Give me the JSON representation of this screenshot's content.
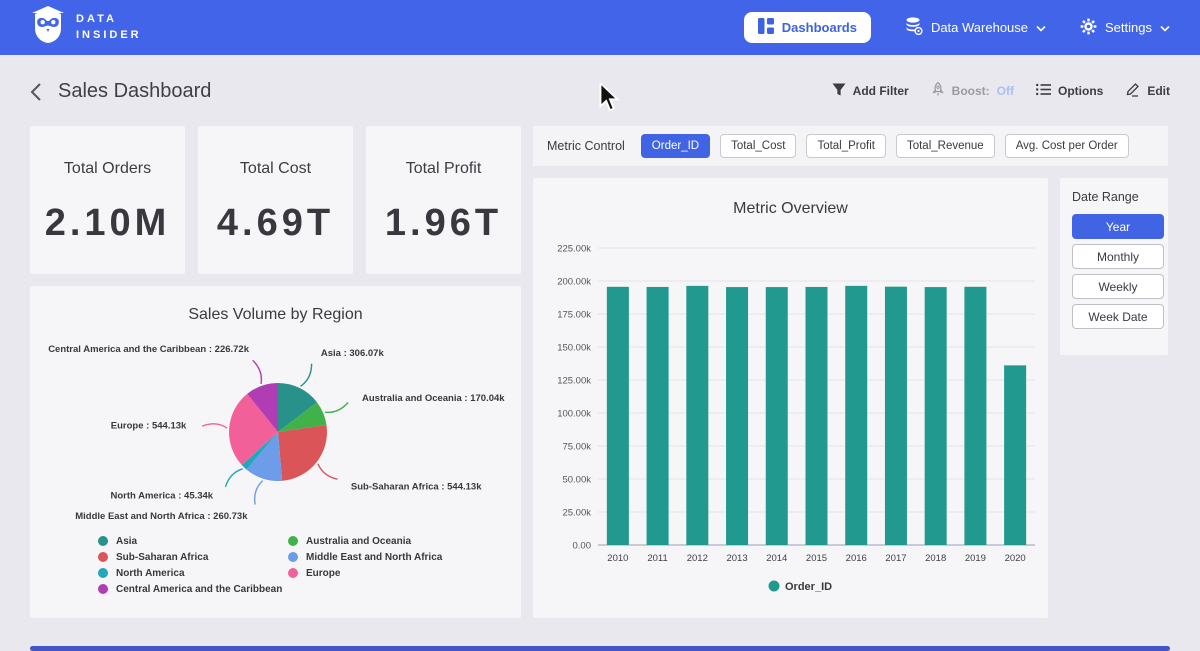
{
  "nav": {
    "brand": {
      "line1": "DATA",
      "line2": "INSIDER"
    },
    "dashboards_label": "Dashboards",
    "data_warehouse_label": "Data Warehouse",
    "settings_label": "Settings"
  },
  "header": {
    "title": "Sales Dashboard",
    "add_filter_label": "Add Filter",
    "boost_label": "Boost:",
    "boost_state": "Off",
    "options_label": "Options",
    "edit_label": "Edit"
  },
  "kpis": [
    {
      "label": "Total Orders",
      "value": "2.10M"
    },
    {
      "label": "Total Cost",
      "value": "4.69T"
    },
    {
      "label": "Total Profit",
      "value": "1.96T"
    }
  ],
  "metric_control": {
    "label": "Metric Control",
    "options": [
      {
        "label": "Order_ID",
        "selected": true
      },
      {
        "label": "Total_Cost",
        "selected": false
      },
      {
        "label": "Total_Profit",
        "selected": false
      },
      {
        "label": "Total_Revenue",
        "selected": false
      },
      {
        "label": "Avg. Cost per Order",
        "selected": false
      }
    ]
  },
  "date_range": {
    "label": "Date Range",
    "options": [
      {
        "label": "Year",
        "selected": true
      },
      {
        "label": "Monthly",
        "selected": false
      },
      {
        "label": "Weekly",
        "selected": false
      },
      {
        "label": "Week Date",
        "selected": false
      }
    ]
  },
  "colors": {
    "nav_blue": "#4164e8",
    "selected_blue": "#4164e4",
    "page_bg": "#e9e8ee",
    "card_bg": "#f6f5f7",
    "bar_teal": "#22998f"
  },
  "chart_data": [
    {
      "id": "metric_overview",
      "type": "bar",
      "title": "Metric Overview",
      "categories": [
        "2010",
        "2011",
        "2012",
        "2013",
        "2014",
        "2015",
        "2016",
        "2017",
        "2018",
        "2019",
        "2020"
      ],
      "series": [
        {
          "name": "Order_ID",
          "color": "#22998f",
          "values": [
            195.6,
            195.5,
            196.3,
            195.4,
            195.4,
            195.5,
            196.3,
            195.7,
            195.4,
            195.6,
            136.1
          ]
        }
      ],
      "value_unit": "k",
      "ylim": [
        0,
        225
      ],
      "ytick_step": 25,
      "grid": true,
      "legend_position": "bottom"
    },
    {
      "id": "sales_by_region",
      "type": "pie",
      "title": "Sales Volume by Region",
      "value_unit": "k",
      "slices": [
        {
          "label": "Asia",
          "value": 306.07,
          "display": "Asia : 306.07k",
          "color": "#27918a"
        },
        {
          "label": "Australia and Oceania",
          "value": 170.04,
          "display": "Australia and Oceania : 170.04k",
          "color": "#41b149"
        },
        {
          "label": "Sub-Saharan Africa",
          "value": 544.13,
          "display": "Sub-Saharan Africa : 544.13k",
          "color": "#db5457"
        },
        {
          "label": "Middle East and North Africa",
          "value": 260.73,
          "display": "Middle East and North Africa : 260.73k",
          "color": "#6d9ce8"
        },
        {
          "label": "North America",
          "value": 45.34,
          "display": "North America : 45.34k",
          "color": "#22a7bd"
        },
        {
          "label": "Europe",
          "value": 544.13,
          "display": "Europe : 544.13k",
          "color": "#f2609a"
        },
        {
          "label": "Central America and the Caribbean",
          "value": 226.72,
          "display": "Central America and the Caribbean : 226.72k",
          "color": "#b13db4"
        }
      ],
      "legend_columns": [
        [
          "Asia",
          "Sub-Saharan Africa",
          "North America",
          "Central America and the Caribbean"
        ],
        [
          "Australia and Oceania",
          "Middle East and North Africa",
          "Europe"
        ]
      ]
    }
  ]
}
